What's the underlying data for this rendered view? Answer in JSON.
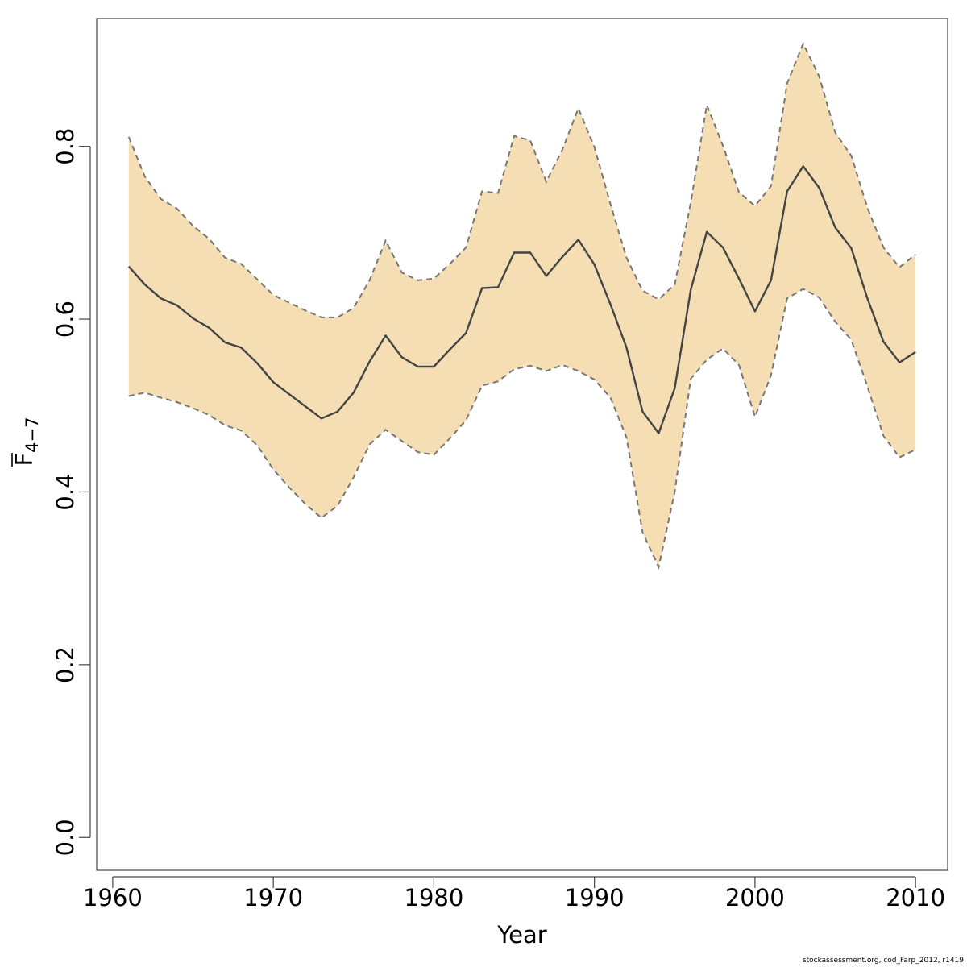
{
  "chart_data": {
    "type": "line",
    "title": "",
    "xlabel": "Year",
    "ylabel_main": "F",
    "ylabel_sub": "4−7",
    "xlim": [
      1959,
      2012
    ],
    "ylim": [
      -0.038,
      0.948
    ],
    "xticks": [
      1960,
      1970,
      1980,
      1990,
      2000,
      2010
    ],
    "yticks": [
      0.0,
      0.2,
      0.4,
      0.6,
      0.8
    ],
    "ytick_labels": [
      "0.0",
      "0.2",
      "0.4",
      "0.6",
      "0.8"
    ],
    "band_color": "#F5DEB3",
    "line_color": "#444444",
    "x": [
      1961,
      1962,
      1963,
      1964,
      1965,
      1966,
      1967,
      1968,
      1969,
      1970,
      1971,
      1972,
      1973,
      1974,
      1975,
      1976,
      1977,
      1978,
      1979,
      1980,
      1981,
      1982,
      1983,
      1984,
      1985,
      1986,
      1987,
      1988,
      1989,
      1990,
      1991,
      1992,
      1993,
      1994,
      1995,
      1996,
      1997,
      1998,
      1999,
      2000,
      2001,
      2002,
      2003,
      2004,
      2005,
      2006,
      2007,
      2008,
      2009,
      2010
    ],
    "series": [
      {
        "name": "estimate",
        "values": [
          0.661,
          0.64,
          0.624,
          0.616,
          0.601,
          0.59,
          0.573,
          0.567,
          0.549,
          0.527,
          0.513,
          0.499,
          0.485,
          0.493,
          0.515,
          0.551,
          0.581,
          0.556,
          0.545,
          0.545,
          0.565,
          0.584,
          0.636,
          0.637,
          0.677,
          0.677,
          0.65,
          0.672,
          0.692,
          0.663,
          0.617,
          0.567,
          0.493,
          0.468,
          0.52,
          0.634,
          0.701,
          0.683,
          0.647,
          0.609,
          0.645,
          0.748,
          0.777,
          0.752,
          0.706,
          0.682,
          0.624,
          0.574,
          0.55,
          0.562
        ]
      },
      {
        "name": "upper",
        "values": [
          0.811,
          0.765,
          0.739,
          0.728,
          0.708,
          0.693,
          0.671,
          0.664,
          0.646,
          0.628,
          0.619,
          0.61,
          0.602,
          0.602,
          0.613,
          0.645,
          0.691,
          0.654,
          0.645,
          0.647,
          0.664,
          0.683,
          0.748,
          0.746,
          0.812,
          0.807,
          0.759,
          0.796,
          0.844,
          0.799,
          0.733,
          0.671,
          0.633,
          0.623,
          0.64,
          0.735,
          0.848,
          0.801,
          0.747,
          0.731,
          0.754,
          0.873,
          0.919,
          0.881,
          0.816,
          0.789,
          0.729,
          0.683,
          0.66,
          0.675
        ]
      },
      {
        "name": "lower",
        "values": [
          0.511,
          0.515,
          0.509,
          0.504,
          0.497,
          0.489,
          0.477,
          0.471,
          0.454,
          0.426,
          0.405,
          0.386,
          0.37,
          0.384,
          0.417,
          0.455,
          0.472,
          0.459,
          0.446,
          0.443,
          0.462,
          0.483,
          0.523,
          0.528,
          0.542,
          0.546,
          0.54,
          0.547,
          0.54,
          0.53,
          0.509,
          0.463,
          0.353,
          0.313,
          0.4,
          0.531,
          0.553,
          0.566,
          0.547,
          0.487,
          0.535,
          0.624,
          0.635,
          0.625,
          0.597,
          0.576,
          0.522,
          0.465,
          0.44,
          0.449
        ]
      }
    ]
  },
  "credit": "stockassessment.org, cod_Farp_2012, r1419"
}
